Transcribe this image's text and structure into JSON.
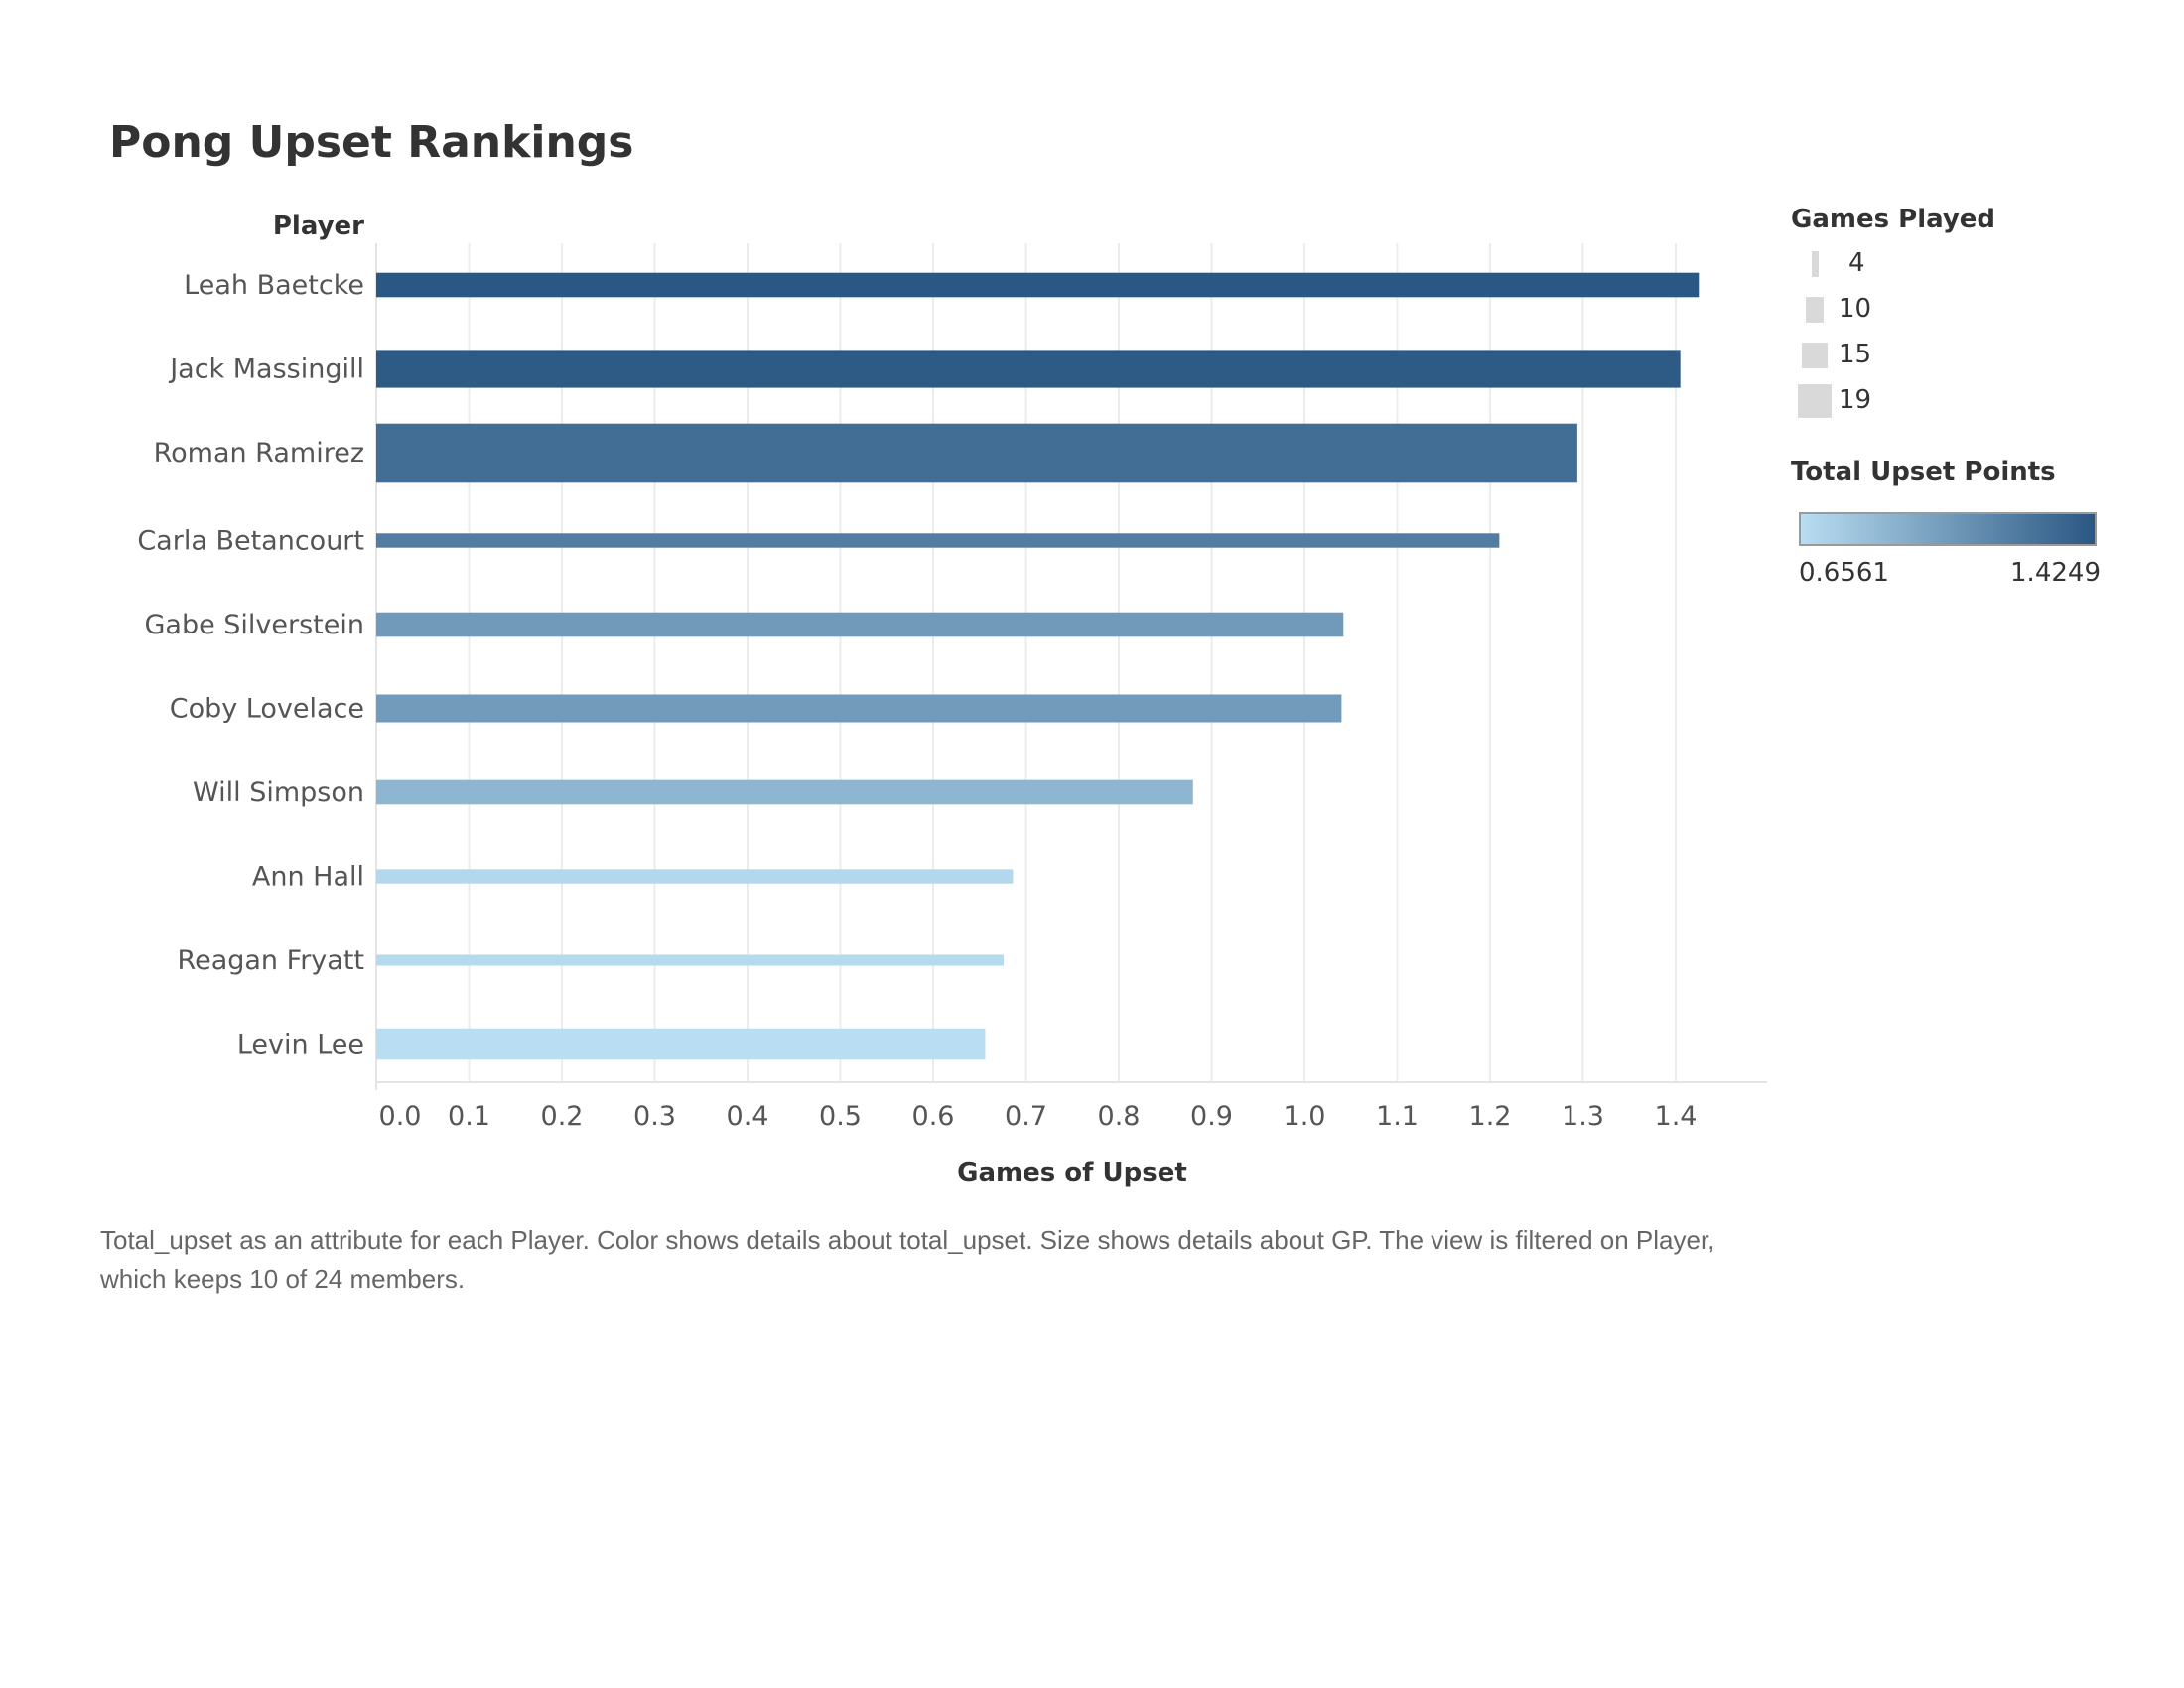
{
  "title": "Pong Upset Rankings",
  "caption": "Total_upset as an attribute for each Player.  Color shows details about total_upset.  Size shows details about GP. The view is filtered on Player, which keeps 10 of 24 members.",
  "chart_data": {
    "type": "bar",
    "orientation": "horizontal",
    "ylabel": "Player",
    "xlabel": "Games of Upset",
    "xlim": [
      0,
      1.5
    ],
    "xticks": [
      "0.0",
      "0.1",
      "0.2",
      "0.3",
      "0.4",
      "0.5",
      "0.6",
      "0.7",
      "0.8",
      "0.9",
      "1.0",
      "1.1",
      "1.2",
      "1.3",
      "1.4"
    ],
    "grid": true,
    "categories": [
      "Leah Baetcke",
      "Jack Massingill",
      "Roman Ramirez",
      "Carla Betancourt",
      "Gabe Silverstein",
      "Coby Lovelace",
      "Will Simpson",
      "Ann Hall",
      "Reagan Fryatt",
      "Levin Lee"
    ],
    "values": [
      1.4249,
      1.405,
      1.294,
      1.21,
      1.042,
      1.04,
      0.88,
      0.686,
      0.676,
      0.6561
    ],
    "games_played": [
      8,
      12,
      18,
      5,
      8,
      9,
      8,
      5,
      4,
      10
    ],
    "color_scale": {
      "min_color": "#b9ddf1",
      "max_color": "#2a5783"
    }
  },
  "legend_size": {
    "title": "Games Played",
    "items": [
      {
        "label": "4",
        "value": 4
      },
      {
        "label": "10",
        "value": 10
      },
      {
        "label": "15",
        "value": 15
      },
      {
        "label": "19",
        "value": 19
      }
    ]
  },
  "legend_color": {
    "title": "Total Upset Points",
    "min_label": "0.6561",
    "max_label": "1.4249"
  }
}
